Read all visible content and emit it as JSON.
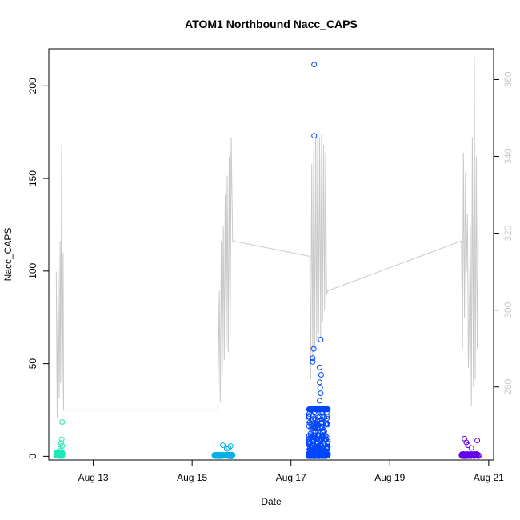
{
  "chart_data": {
    "type": "scatter",
    "title": "ATOM1 Northbound Nacc_CAPS",
    "xlabel": "Date",
    "ylabel": "Nacc_CAPS",
    "x_ticks": [
      {
        "date": "Aug 13",
        "day": 13
      },
      {
        "date": "Aug 15",
        "day": 15
      },
      {
        "date": "Aug 17",
        "day": 17
      },
      {
        "date": "Aug 19",
        "day": 19
      },
      {
        "date": "Aug 21",
        "day": 21
      }
    ],
    "xlim_days": [
      12.1,
      21.1
    ],
    "y_left": {
      "ticks": [
        0,
        50,
        100,
        150,
        200
      ],
      "lim": [
        -2,
        220
      ]
    },
    "y_right": {
      "ticks": [
        280,
        300,
        320,
        340,
        360
      ],
      "lim": [
        261,
        368
      ],
      "color": "#c8c8c8"
    },
    "series": [
      {
        "color": "#1de9b6",
        "x_range": [
          12.25,
          12.38
        ],
        "count": 70,
        "max_y": 18.5,
        "highlights": [
          [
            12.37,
            18.5
          ],
          [
            12.36,
            9.2
          ],
          [
            12.35,
            7.1
          ],
          [
            12.37,
            5.6
          ],
          [
            12.33,
            4.0
          ],
          [
            12.34,
            3.0
          ]
        ]
      },
      {
        "color": "#00b0ea",
        "x_range": [
          15.45,
          15.82
        ],
        "count": 120,
        "max_y": 6.0,
        "highlights": [
          [
            15.62,
            6.0
          ],
          [
            15.78,
            5.5
          ],
          [
            15.74,
            4.5
          ],
          [
            15.7,
            4.0
          ]
        ]
      },
      {
        "color": "#0046ff",
        "x_range": [
          17.35,
          17.75
        ],
        "count": 420,
        "max_y": 211.5,
        "highlights": [
          [
            17.47,
            211.5
          ],
          [
            17.47,
            173.0
          ],
          [
            17.6,
            63.0
          ],
          [
            17.46,
            58.0
          ],
          [
            17.44,
            53.0
          ],
          [
            17.44,
            51.0
          ],
          [
            17.58,
            48.0
          ],
          [
            17.61,
            44.0
          ],
          [
            17.58,
            40.0
          ],
          [
            17.59,
            37.0
          ],
          [
            17.6,
            34.0
          ],
          [
            17.64,
            26.0
          ],
          [
            17.48,
            24.0
          ],
          [
            17.58,
            30.0
          ],
          [
            17.55,
            21.0
          ],
          [
            17.45,
            20.0
          ],
          [
            17.62,
            18.0
          ],
          [
            17.52,
            17.0
          ],
          [
            17.49,
            15.0
          ]
        ]
      },
      {
        "color": "#6200ea",
        "x_range": [
          20.45,
          20.8
        ],
        "count": 90,
        "max_y": 9.5,
        "highlights": [
          [
            20.51,
            9.5
          ],
          [
            20.55,
            7.5
          ],
          [
            20.77,
            8.5
          ],
          [
            20.58,
            6.0
          ],
          [
            20.65,
            4.5
          ]
        ]
      }
    ],
    "line_series": {
      "axis": "right",
      "color": "#c8c8c8",
      "points": [
        [
          12.25,
          310
        ],
        [
          12.27,
          272
        ],
        [
          12.29,
          311
        ],
        [
          12.31,
          277
        ],
        [
          12.33,
          318
        ],
        [
          12.34,
          281
        ],
        [
          12.36,
          343
        ],
        [
          12.37,
          276
        ],
        [
          12.39,
          315
        ],
        [
          12.4,
          274
        ],
        [
          15.52,
          274
        ],
        [
          15.55,
          305
        ],
        [
          15.57,
          276
        ],
        [
          15.59,
          318
        ],
        [
          15.61,
          283
        ],
        [
          15.63,
          322
        ],
        [
          15.65,
          287
        ],
        [
          15.67,
          330
        ],
        [
          15.69,
          290
        ],
        [
          15.71,
          335
        ],
        [
          15.73,
          289
        ],
        [
          15.75,
          340
        ],
        [
          15.77,
          293
        ],
        [
          15.79,
          345
        ],
        [
          15.82,
          318
        ],
        [
          17.38,
          314
        ],
        [
          17.4,
          282
        ],
        [
          17.42,
          338
        ],
        [
          17.44,
          287
        ],
        [
          17.46,
          342
        ],
        [
          17.48,
          290
        ],
        [
          17.5,
          345
        ],
        [
          17.52,
          292
        ],
        [
          17.54,
          346
        ],
        [
          17.56,
          294
        ],
        [
          17.58,
          345
        ],
        [
          17.6,
          293
        ],
        [
          17.62,
          346
        ],
        [
          17.64,
          297
        ],
        [
          17.66,
          343
        ],
        [
          17.68,
          300
        ],
        [
          17.7,
          341
        ],
        [
          17.72,
          304
        ],
        [
          17.74,
          305
        ],
        [
          20.45,
          318
        ],
        [
          20.47,
          290
        ],
        [
          20.49,
          341
        ],
        [
          20.51,
          298
        ],
        [
          20.53,
          336
        ],
        [
          20.55,
          310
        ],
        [
          20.57,
          325
        ],
        [
          20.59,
          285
        ],
        [
          20.61,
          300
        ],
        [
          20.63,
          322
        ],
        [
          20.65,
          275
        ],
        [
          20.67,
          345
        ],
        [
          20.69,
          280
        ],
        [
          20.71,
          366
        ],
        [
          20.73,
          282
        ],
        [
          20.75,
          340
        ],
        [
          20.77,
          290
        ],
        [
          20.79,
          318
        ]
      ]
    },
    "grid": false,
    "legend": "none"
  }
}
